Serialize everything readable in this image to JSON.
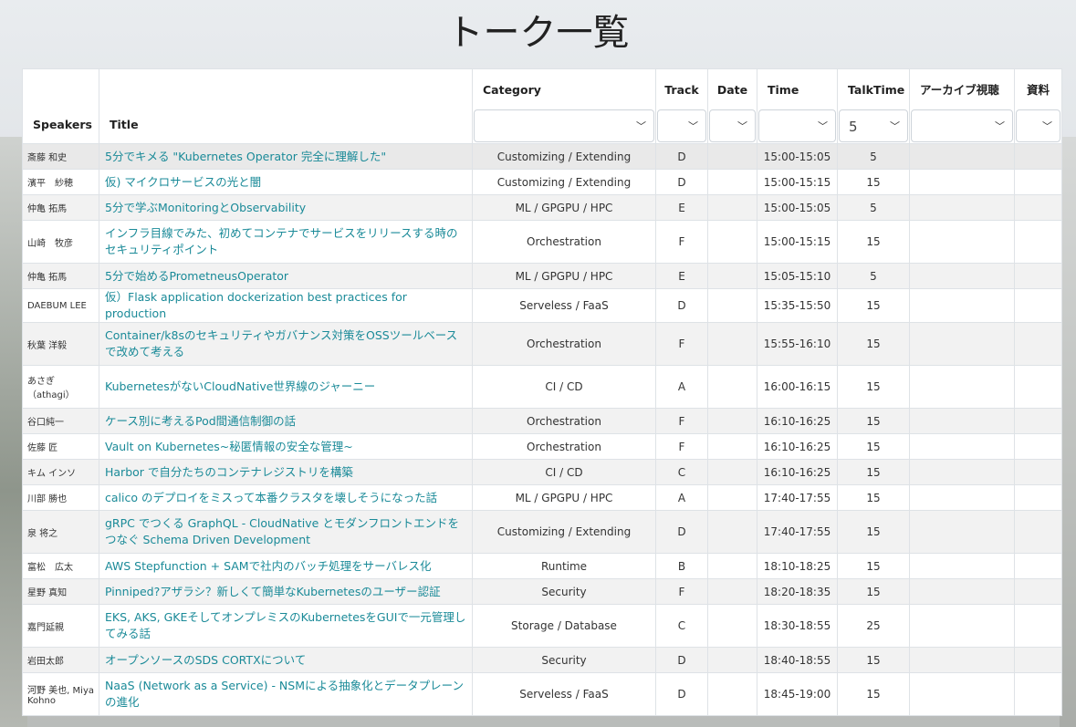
{
  "page_title": "トーク一覧",
  "headers": {
    "speakers": "Speakers",
    "title": "Title",
    "category": "Category",
    "track": "Track",
    "date": "Date",
    "time": "Time",
    "talktime": "TalkTime",
    "archive": "アーカイブ視聴",
    "materials": "資料"
  },
  "filters": {
    "category": "",
    "track": "",
    "date": "",
    "time": "",
    "talktime": "5",
    "archive": "",
    "materials": ""
  },
  "rows": [
    {
      "speaker": "斎藤 和史",
      "title": "5分でキメる \"Kubernetes Operator 完全に理解した\"",
      "category": "Customizing / Extending",
      "track": "D",
      "date": "",
      "time": "15:00-15:05",
      "talktime": "5"
    },
    {
      "speaker": "濱平　紗穂",
      "title": "仮) マイクロサービスの光と闇",
      "category": "Customizing / Extending",
      "track": "D",
      "date": "",
      "time": "15:00-15:15",
      "talktime": "15"
    },
    {
      "speaker": "仲亀 拓馬",
      "title": "5分で学ぶMonitoringとObservability",
      "category": "ML / GPGPU / HPC",
      "track": "E",
      "date": "",
      "time": "15:00-15:05",
      "talktime": "5"
    },
    {
      "speaker": "山崎　牧彦",
      "title": "インフラ目線でみた、初めてコンテナでサービスをリリースする時のセキュリティポイント",
      "category": "Orchestration",
      "track": "F",
      "date": "",
      "time": "15:00-15:15",
      "talktime": "15",
      "tall": true
    },
    {
      "speaker": "仲亀 拓馬",
      "title": "5分で始めるPrometneusOperator",
      "category": "ML / GPGPU / HPC",
      "track": "E",
      "date": "",
      "time": "15:05-15:10",
      "talktime": "5"
    },
    {
      "speaker": "DAEBUM LEE",
      "title": "仮）Flask application dockerization best practices for production",
      "category": "Serveless / FaaS",
      "track": "D",
      "date": "",
      "time": "15:35-15:50",
      "talktime": "15"
    },
    {
      "speaker": "秋葉 洋毅",
      "title": "Container/k8sのセキュリティやガバナンス対策をOSSツールベースで改めて考える",
      "category": "Orchestration",
      "track": "F",
      "date": "",
      "time": "15:55-16:10",
      "talktime": "15",
      "tall": true
    },
    {
      "speaker": "あさぎ（athagi）",
      "title": "KubernetesがないCloudNative世界線のジャーニー",
      "category": "CI / CD",
      "track": "A",
      "date": "",
      "time": "16:00-16:15",
      "talktime": "15",
      "tall": true
    },
    {
      "speaker": "谷口純一",
      "title": "ケース別に考えるPod間通信制御の話",
      "category": "Orchestration",
      "track": "F",
      "date": "",
      "time": "16:10-16:25",
      "talktime": "15"
    },
    {
      "speaker": "佐藤 匠",
      "title": "Vault on Kubernetes~秘匿情報の安全な管理~",
      "category": "Orchestration",
      "track": "F",
      "date": "",
      "time": "16:10-16:25",
      "talktime": "15"
    },
    {
      "speaker": "キム インソ",
      "title": "Harbor で自分たちのコンテナレジストリを構築",
      "category": "CI / CD",
      "track": "C",
      "date": "",
      "time": "16:10-16:25",
      "talktime": "15"
    },
    {
      "speaker": "川部 勝也",
      "title": "calico のデプロイをミスって本番クラスタを壊しそうになった話",
      "category": "ML / GPGPU / HPC",
      "track": "A",
      "date": "",
      "time": "17:40-17:55",
      "talktime": "15"
    },
    {
      "speaker": "泉 将之",
      "title": "gRPC でつくる GraphQL - CloudNative とモダンフロントエンドをつなぐ Schema Driven Development",
      "category": "Customizing / Extending",
      "track": "D",
      "date": "",
      "time": "17:40-17:55",
      "talktime": "15",
      "tall": true
    },
    {
      "speaker": "富松　広太",
      "title": "AWS Stepfunction + SAMで社内のバッチ処理をサーバレス化",
      "category": "Runtime",
      "track": "B",
      "date": "",
      "time": "18:10-18:25",
      "talktime": "15"
    },
    {
      "speaker": "星野 真知",
      "title": "Pinniped?アザラシ？新しくて簡単なKubernetesのユーザー認証",
      "category": "Security",
      "track": "F",
      "date": "",
      "time": "18:20-18:35",
      "talktime": "15"
    },
    {
      "speaker": "嘉門延親",
      "title": "EKS, AKS, GKEそしてオンプレミスのKubernetesをGUIで一元管理してみる話",
      "category": "Storage / Database",
      "track": "C",
      "date": "",
      "time": "18:30-18:55",
      "talktime": "25",
      "tall": true
    },
    {
      "speaker": "岩田太郎",
      "title": "オープンソースのSDS CORTXについて",
      "category": "Security",
      "track": "D",
      "date": "",
      "time": "18:40-18:55",
      "talktime": "15"
    },
    {
      "speaker": "河野 美也, Miya Kohno",
      "title": "NaaS (Network as a Service) - NSMによる抽象化とデータプレーンの進化",
      "category": "Serveless / FaaS",
      "track": "D",
      "date": "",
      "time": "18:45-19:00",
      "talktime": "15",
      "tall": true
    }
  ]
}
